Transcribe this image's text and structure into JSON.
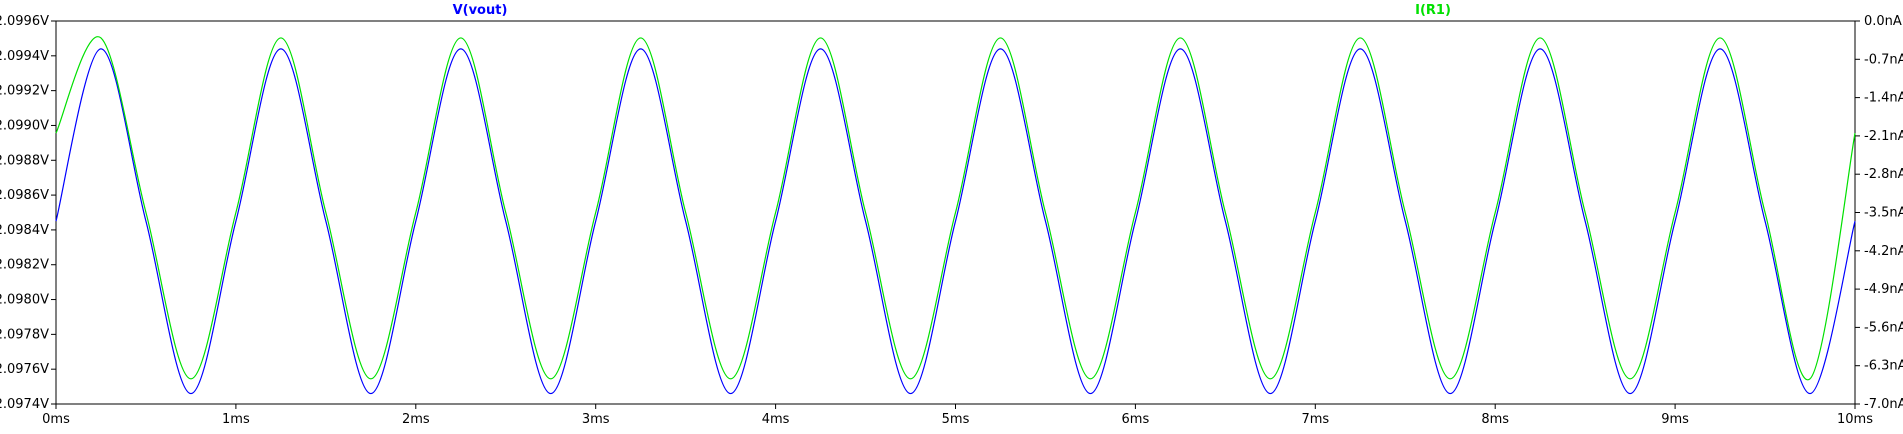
{
  "chart_data": {
    "type": "line",
    "x_unit": "ms",
    "xlim": [
      0,
      10
    ],
    "x_ticks": [
      "0ms",
      "1ms",
      "2ms",
      "3ms",
      "4ms",
      "5ms",
      "6ms",
      "7ms",
      "8ms",
      "9ms",
      "10ms"
    ],
    "y_left": {
      "ylim": [
        2.0974,
        2.0996
      ],
      "ticks": [
        "2.0996V",
        "2.0994V",
        "2.0992V",
        "2.0990V",
        "2.0988V",
        "2.0986V",
        "2.0984V",
        "2.0982V",
        "2.0980V",
        "2.0978V",
        "2.0976V",
        "2.0974V"
      ]
    },
    "y_right": {
      "ylim": [
        -7.0,
        0.0
      ],
      "ticks": [
        "0.0nA",
        "-0.7nA",
        "-1.4nA",
        "-2.1nA",
        "-2.8nA",
        "-3.5nA",
        "-4.2nA",
        "-4.9nA",
        "-5.6nA",
        "-6.3nA",
        "-7.0nA"
      ]
    },
    "series": [
      {
        "name": "V(vout)",
        "axis": "left",
        "color": "#0000ff",
        "x": [
          0,
          0.25,
          0.5,
          0.75,
          1,
          1.25,
          1.5,
          1.75,
          2,
          2.25,
          2.5,
          2.75,
          3,
          3.25,
          3.5,
          3.75,
          4,
          4.25,
          4.5,
          4.75,
          5,
          5.25,
          5.5,
          5.75,
          6,
          6.25,
          6.5,
          6.75,
          7,
          7.25,
          7.5,
          7.75,
          8,
          8.25,
          8.5,
          8.75,
          9,
          9.25,
          9.5,
          9.75,
          10
        ],
        "y": [
          2.09845,
          2.09944,
          2.09845,
          2.09746,
          2.09845,
          2.09944,
          2.09845,
          2.09746,
          2.09845,
          2.09944,
          2.09845,
          2.09746,
          2.09845,
          2.09944,
          2.09845,
          2.09746,
          2.09845,
          2.09944,
          2.09845,
          2.09746,
          2.09845,
          2.09944,
          2.09845,
          2.09746,
          2.09845,
          2.09944,
          2.09845,
          2.09746,
          2.09845,
          2.09944,
          2.09845,
          2.09746,
          2.09845,
          2.09944,
          2.09845,
          2.09746,
          2.09845,
          2.09944,
          2.09845,
          2.09746,
          2.09845
        ]
      },
      {
        "name": "I(R1)",
        "axis": "right",
        "color": "#00e000",
        "x": [
          0,
          0.25,
          0.5,
          0.75,
          1,
          1.25,
          1.5,
          1.75,
          2,
          2.25,
          2.5,
          2.75,
          3,
          3.25,
          3.5,
          3.75,
          4,
          4.25,
          4.5,
          4.75,
          5,
          5.25,
          5.5,
          5.75,
          6,
          6.25,
          6.5,
          6.75,
          7,
          7.25,
          7.5,
          7.75,
          8,
          8.25,
          8.5,
          8.75,
          9,
          9.25,
          9.5,
          9.75,
          10
        ],
        "y": [
          -2.05,
          -0.31,
          -3.5,
          -6.54,
          -3.5,
          -0.31,
          -3.5,
          -6.54,
          -3.5,
          -0.31,
          -3.5,
          -6.54,
          -3.5,
          -0.31,
          -3.5,
          -6.54,
          -3.5,
          -0.31,
          -3.5,
          -6.54,
          -3.5,
          -0.31,
          -3.5,
          -6.54,
          -3.5,
          -0.31,
          -3.5,
          -6.54,
          -3.5,
          -0.31,
          -3.5,
          -6.54,
          -3.5,
          -0.31,
          -3.5,
          -6.54,
          -3.5,
          -0.31,
          -3.5,
          -6.54,
          -2.05
        ]
      }
    ],
    "grid": false,
    "legend": "top"
  }
}
